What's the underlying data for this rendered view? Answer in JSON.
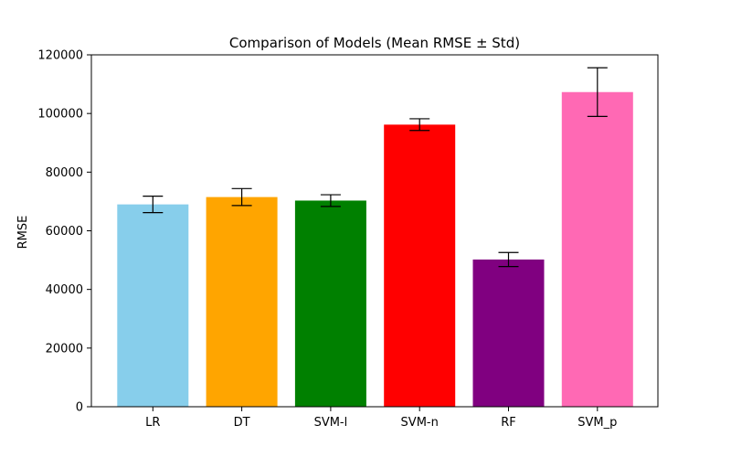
{
  "chart_data": {
    "type": "bar",
    "title": "Comparison of Models (Mean RMSE ± Std)",
    "xlabel": "",
    "ylabel": "RMSE",
    "ylim": [
      0,
      120000
    ],
    "yticks": [
      0,
      20000,
      40000,
      60000,
      80000,
      100000,
      120000
    ],
    "yticklabels": [
      "0",
      "20000",
      "40000",
      "60000",
      "80000",
      "100000",
      "120000"
    ],
    "grid": false,
    "categories": [
      "LR",
      "DT",
      "SVM-l",
      "SVM-n",
      "RF",
      "SVM_p"
    ],
    "values": [
      69000,
      71500,
      70300,
      96200,
      50200,
      107300
    ],
    "errors": [
      2800,
      2900,
      2000,
      2000,
      2400,
      8300
    ],
    "colors": [
      "#87CEEB",
      "#FFA500",
      "#008000",
      "#FF0000",
      "#800080",
      "#FF69B4"
    ]
  }
}
